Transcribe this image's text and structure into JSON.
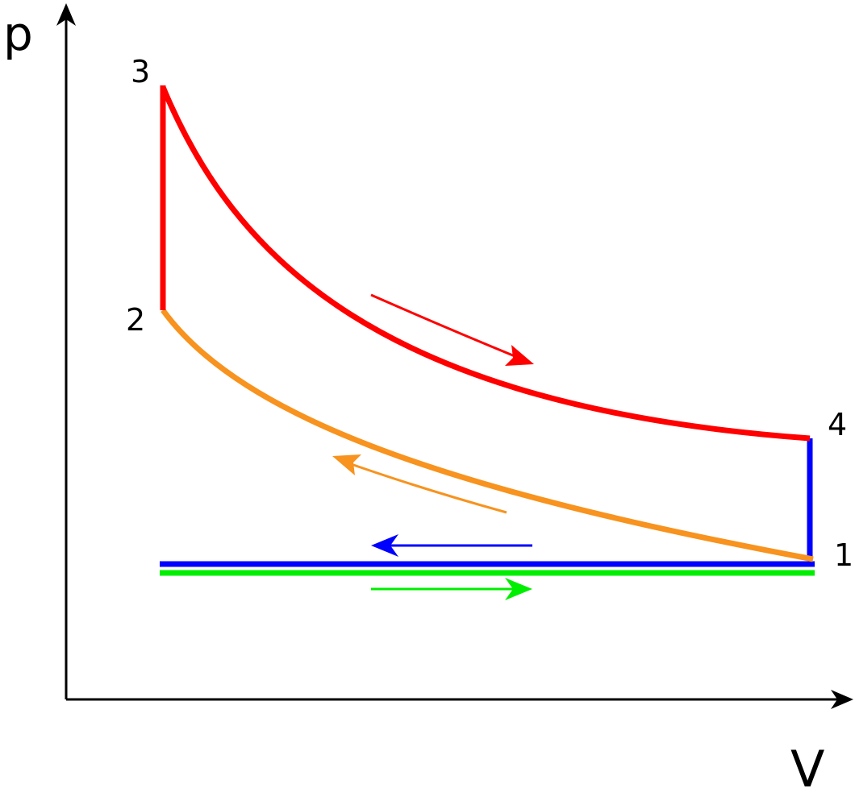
{
  "axes": {
    "y_label": "p",
    "x_label": "V"
  },
  "points": {
    "p1": "1",
    "p2": "2",
    "p3": "3",
    "p4": "4"
  },
  "colors": {
    "axis": "#000000",
    "combustion_expansion": "#ff0000",
    "compression": "#f7931e",
    "exhaust": "#0000ff",
    "intake": "#00ee00"
  }
}
